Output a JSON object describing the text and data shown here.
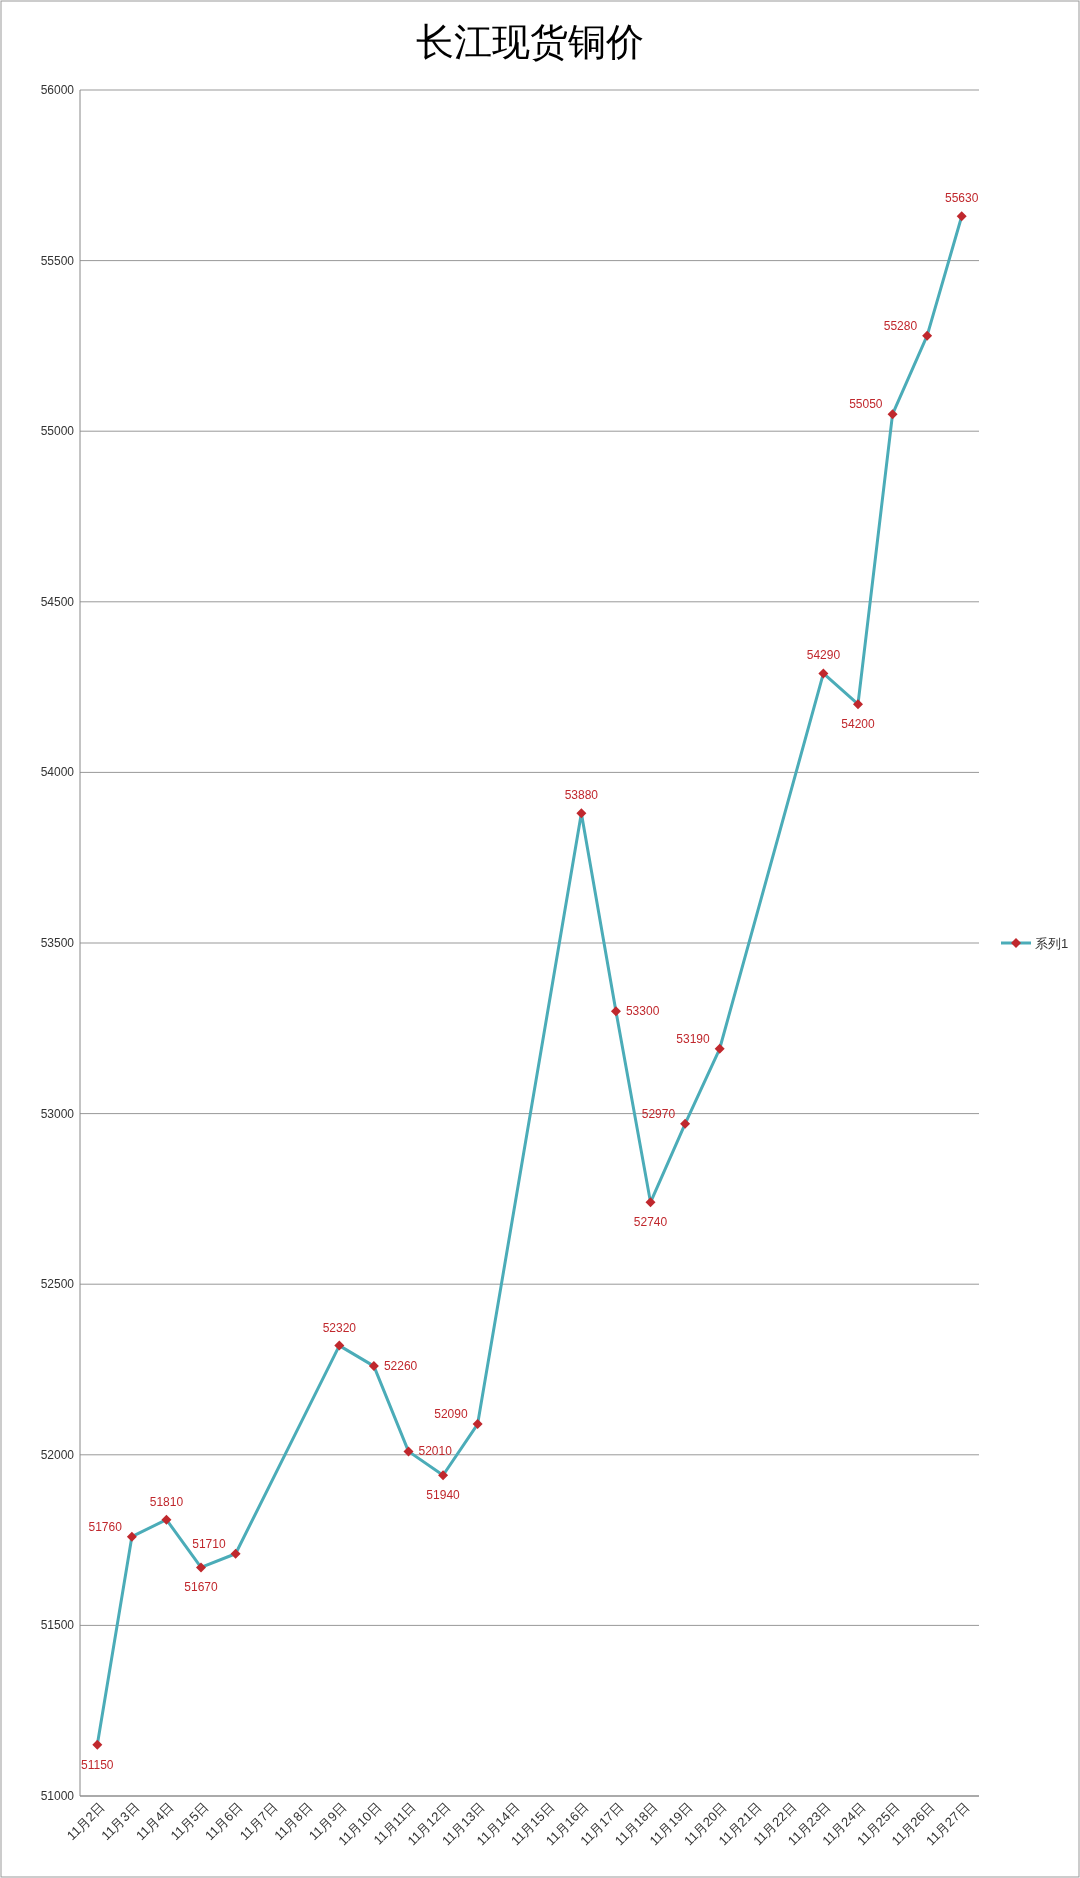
{
  "chart_data": {
    "type": "line",
    "title": "长江现货铜价",
    "categories": [
      "11月2日",
      "11月3日",
      "11月4日",
      "11月5日",
      "11月6日",
      "11月7日",
      "11月8日",
      "11月9日",
      "11月10日",
      "11月11日",
      "11月12日",
      "11月13日",
      "11月14日",
      "11月15日",
      "11月16日",
      "11月17日",
      "11月18日",
      "11月19日",
      "11月20日",
      "11月21日",
      "11月22日",
      "11月23日",
      "11月24日",
      "11月25日",
      "11月26日",
      "11月27日"
    ],
    "series": [
      {
        "name": "系列1",
        "color": "#4bacb8",
        "values": [
          51150,
          51760,
          51810,
          51670,
          51710,
          null,
          null,
          52320,
          52260,
          52010,
          51940,
          52090,
          null,
          null,
          53880,
          53300,
          52740,
          52970,
          53190,
          null,
          null,
          54290,
          54200,
          55050,
          55280,
          55630
        ]
      }
    ],
    "ylim": [
      51000,
      56000
    ],
    "yticks": [
      51000,
      51500,
      52000,
      52500,
      53000,
      53500,
      54000,
      54500,
      55000,
      55500,
      56000
    ],
    "grid": "y",
    "legend": "right",
    "marker": "diamond",
    "data_labels": true
  }
}
